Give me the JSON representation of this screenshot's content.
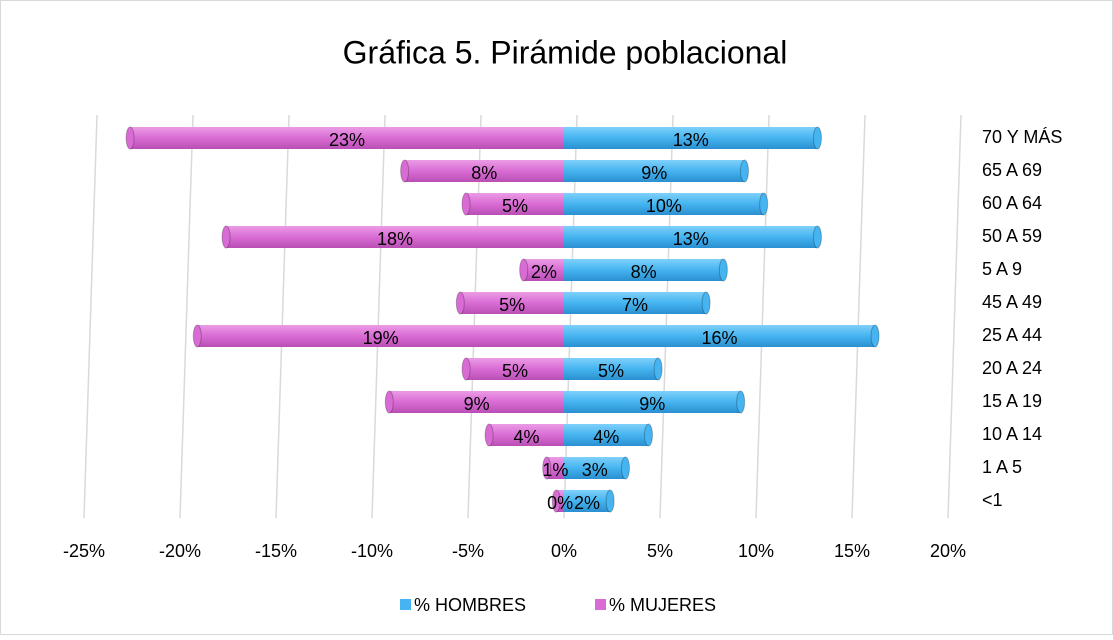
{
  "chart_data": {
    "type": "bar",
    "orientation": "horizontal",
    "stacked": true,
    "title": "Gráfica 5. Pirámide poblacional",
    "categories": [
      "70 Y MÁS",
      "65 A 69",
      "60 A 64",
      "50 A 59",
      "5 A 9",
      "45 A 49",
      "25 A 44",
      "20 A 24",
      "15 A 19",
      "10 A 14",
      "1 A 5",
      "<1"
    ],
    "series": [
      {
        "name": "% HOMBRES",
        "color": "#45b4f0",
        "values": [
          13.2,
          9.4,
          10.4,
          13.2,
          8.3,
          7.4,
          16.2,
          4.9,
          9.2,
          4.4,
          3.2,
          2.4
        ],
        "value_labels": [
          "13%",
          "9%",
          "10%",
          "13%",
          "8%",
          "7%",
          "16%",
          "5%",
          "9%",
          "4%",
          "3%",
          "2%"
        ]
      },
      {
        "name": "% MUJERES",
        "color": "#d96cd4",
        "values": [
          -22.6,
          -8.3,
          -5.1,
          -17.6,
          -2.1,
          -5.4,
          -19.1,
          -5.1,
          -9.1,
          -3.9,
          -0.9,
          -0.4
        ],
        "value_labels": [
          "23%",
          "8%",
          "5%",
          "18%",
          "2%",
          "5%",
          "19%",
          "5%",
          "9%",
          "4%",
          "1%",
          "0%"
        ]
      }
    ],
    "xlim": [
      -25,
      20
    ],
    "xticks": [
      {
        "value": -25,
        "label": "-25%"
      },
      {
        "value": -20,
        "label": "-20%"
      },
      {
        "value": -15,
        "label": "-15%"
      },
      {
        "value": -10,
        "label": "-10%"
      },
      {
        "value": -5,
        "label": "-5%"
      },
      {
        "value": 0,
        "label": "0%"
      },
      {
        "value": 5,
        "label": "5%"
      },
      {
        "value": 10,
        "label": "10%"
      },
      {
        "value": 15,
        "label": "15%"
      },
      {
        "value": 20,
        "label": "20%"
      }
    ],
    "grid": true,
    "legend": "bottom"
  }
}
